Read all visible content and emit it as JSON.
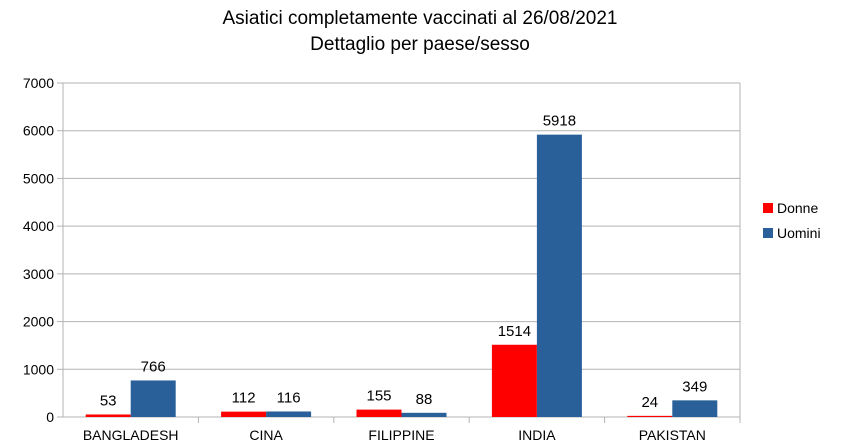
{
  "chart_data": {
    "type": "bar",
    "title": "Asiatici completamente vaccinati al 26/08/2021",
    "subtitle": "Dettaglio per paese/sesso",
    "categories": [
      "BANGLADESH",
      "CINA",
      "FILIPPINE",
      "INDIA",
      "PAKISTAN"
    ],
    "series": [
      {
        "name": "Donne",
        "values": [
          53,
          112,
          155,
          1514,
          24
        ],
        "color": "#ff0000"
      },
      {
        "name": "Uomini",
        "values": [
          766,
          116,
          88,
          5918,
          349
        ],
        "color": "#2a6099"
      }
    ],
    "ylim": [
      0,
      7000
    ],
    "yticks": [
      "0",
      "1000",
      "2000",
      "3000",
      "4000",
      "5000",
      "6000",
      "7000"
    ],
    "grid": true,
    "legend": "right"
  }
}
